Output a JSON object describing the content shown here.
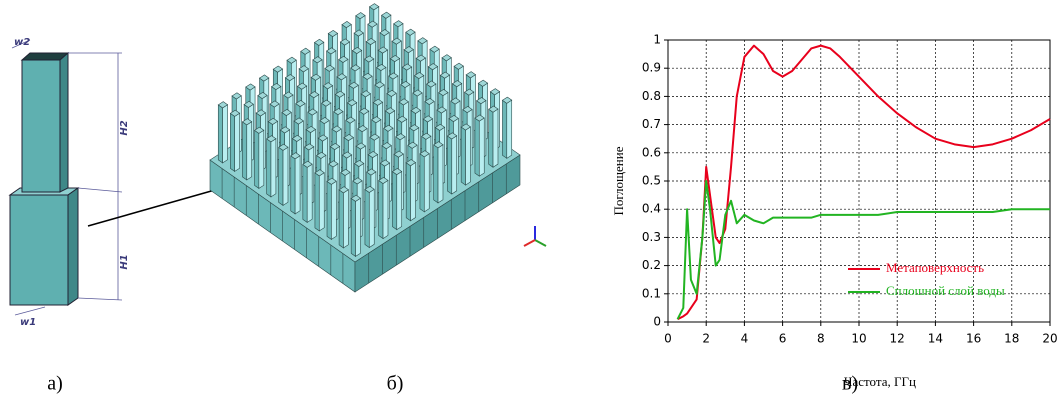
{
  "panel_labels": [
    "а)",
    "б)",
    "в)"
  ],
  "dimension_labels": [
    "w2",
    "H2",
    "H1",
    "w1"
  ],
  "chart_data": {
    "type": "line",
    "xlabel": "Частота, ГГц",
    "ylabel": "Поглощение",
    "x": [
      0.5,
      0.8,
      1,
      1.2,
      1.5,
      1.8,
      2,
      2.2,
      2.5,
      2.7,
      3,
      3.3,
      3.6,
      4,
      4.5,
      5,
      5.5,
      6,
      6.5,
      7,
      7.5,
      8,
      8.5,
      9,
      10,
      11,
      12,
      13,
      14,
      15,
      16,
      17,
      18,
      19,
      20
    ],
    "series": [
      {
        "name": "Метаповерхность",
        "color": "#e8001c",
        "values": [
          0.01,
          0.02,
          0.03,
          0.05,
          0.08,
          0.3,
          0.55,
          0.45,
          0.3,
          0.28,
          0.33,
          0.55,
          0.8,
          0.94,
          0.98,
          0.95,
          0.89,
          0.87,
          0.89,
          0.93,
          0.97,
          0.98,
          0.97,
          0.94,
          0.87,
          0.8,
          0.74,
          0.69,
          0.65,
          0.63,
          0.62,
          0.63,
          0.65,
          0.68,
          0.72
        ]
      },
      {
        "name": "Сплошной слой воды",
        "color": "#22b422",
        "values": [
          0.01,
          0.05,
          0.4,
          0.15,
          0.1,
          0.3,
          0.5,
          0.4,
          0.2,
          0.22,
          0.38,
          0.43,
          0.35,
          0.38,
          0.36,
          0.35,
          0.37,
          0.37,
          0.37,
          0.37,
          0.37,
          0.38,
          0.38,
          0.38,
          0.38,
          0.38,
          0.39,
          0.39,
          0.39,
          0.39,
          0.39,
          0.39,
          0.4,
          0.4,
          0.4
        ]
      }
    ],
    "xlim": [
      0,
      20
    ],
    "ylim": [
      0,
      1
    ],
    "xticks": [
      0,
      2,
      4,
      6,
      8,
      10,
      12,
      14,
      16,
      18,
      20
    ],
    "yticks": [
      0,
      0.1,
      0.2,
      0.3,
      0.4,
      0.5,
      0.6,
      0.7,
      0.8,
      0.9,
      1
    ],
    "grid": true,
    "legend": "lower right"
  }
}
